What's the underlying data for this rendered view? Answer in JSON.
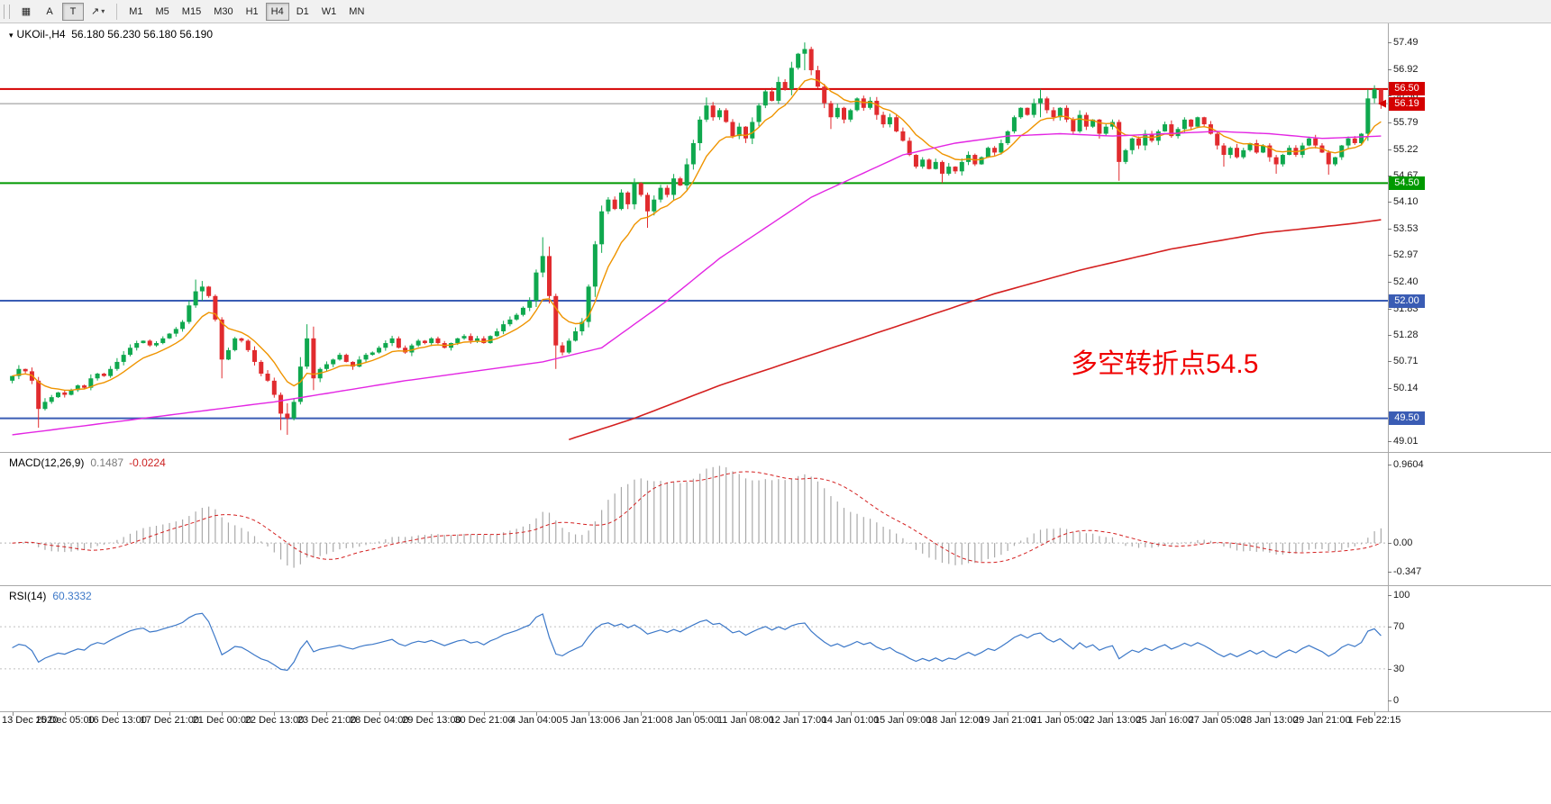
{
  "toolbar": {
    "tools": [
      {
        "id": "chart-grid",
        "glyph": "▦",
        "pressed": false
      },
      {
        "id": "label-a",
        "glyph": "A",
        "pressed": false
      },
      {
        "id": "text-tool",
        "glyph": "T",
        "pressed": true
      },
      {
        "id": "draw-tool",
        "glyph": "↗",
        "pressed": false,
        "caret": "▾"
      }
    ],
    "timeframes": [
      "M1",
      "M5",
      "M15",
      "M30",
      "H1",
      "H4",
      "D1",
      "W1",
      "MN"
    ],
    "active_timeframe": "H4"
  },
  "chart": {
    "header": {
      "menu_glyph": "▾",
      "symbol": "UKOil-,H4",
      "ohlc": "56.180 56.230 56.180 56.190"
    },
    "annotation": {
      "text": "多空转折点54.5",
      "color": "#f00000"
    },
    "current_price": 56.19,
    "scale": {
      "max": 57.78,
      "min": 48.9
    },
    "price_axis": {
      "ticks": [
        57.49,
        56.92,
        56.36,
        55.79,
        55.22,
        54.67,
        54.1,
        53.53,
        52.97,
        52.4,
        51.83,
        51.28,
        50.71,
        50.14,
        49.01
      ],
      "badges": [
        {
          "value": "56.50",
          "color": "#d40000"
        },
        {
          "value": "56.19",
          "color": "#d40000",
          "current": true
        },
        {
          "value": "54.50",
          "color": "#009900"
        },
        {
          "value": "52.00",
          "color": "#3a5cb4"
        },
        {
          "value": "49.50",
          "color": "#3a5cb4"
        }
      ]
    },
    "hlines": [
      {
        "price": 56.5,
        "color": "#d40000",
        "width": 2
      },
      {
        "price": 54.5,
        "color": "#009900",
        "width": 2
      },
      {
        "price": 52.0,
        "color": "#3a5cb4",
        "width": 2
      },
      {
        "price": 49.5,
        "color": "#3a5cb4",
        "width": 2
      }
    ],
    "colors": {
      "up": "#0fa84e",
      "down": "#e12b2e",
      "ma_fast": "#ef9400",
      "ma_mid": "#e326e3",
      "ma_slow": "#d42020"
    }
  },
  "chart_data": {
    "type": "candlestick",
    "symbol": "UKOil-",
    "timeframe": "H4",
    "open_first": 50.3,
    "closes": [
      50.4,
      50.55,
      50.5,
      50.3,
      49.7,
      49.85,
      49.95,
      50.05,
      50.0,
      50.1,
      50.2,
      50.15,
      50.35,
      50.45,
      50.4,
      50.55,
      50.7,
      50.85,
      51.0,
      51.1,
      51.15,
      51.05,
      51.1,
      51.2,
      51.3,
      51.4,
      51.55,
      51.9,
      52.2,
      52.3,
      52.1,
      51.6,
      50.75,
      50.95,
      51.2,
      51.15,
      50.95,
      50.7,
      50.45,
      50.3,
      50.0,
      49.6,
      49.5,
      49.85,
      50.6,
      51.2,
      50.35,
      50.55,
      50.65,
      50.75,
      50.85,
      50.7,
      50.6,
      50.75,
      50.85,
      50.9,
      51.0,
      51.1,
      51.2,
      51.0,
      50.9,
      51.05,
      51.15,
      51.1,
      51.2,
      51.1,
      51.0,
      51.1,
      51.2,
      51.25,
      51.15,
      51.2,
      51.1,
      51.25,
      51.35,
      51.5,
      51.6,
      51.7,
      51.85,
      52.0,
      52.6,
      52.95,
      52.1,
      51.05,
      50.9,
      51.15,
      51.35,
      51.55,
      52.3,
      53.2,
      53.9,
      54.15,
      53.95,
      54.3,
      54.05,
      54.5,
      54.25,
      53.9,
      54.15,
      54.4,
      54.25,
      54.6,
      54.45,
      54.9,
      55.35,
      55.85,
      56.15,
      55.9,
      56.05,
      55.8,
      55.5,
      55.7,
      55.45,
      55.8,
      56.15,
      56.45,
      56.25,
      56.65,
      56.5,
      56.95,
      57.25,
      57.35,
      56.9,
      56.55,
      56.2,
      55.9,
      56.1,
      55.85,
      56.05,
      56.3,
      56.1,
      56.25,
      55.95,
      55.75,
      55.9,
      55.6,
      55.4,
      55.1,
      54.85,
      55.0,
      54.8,
      54.95,
      54.7,
      54.85,
      54.75,
      54.95,
      55.1,
      54.9,
      55.05,
      55.25,
      55.15,
      55.35,
      55.6,
      55.9,
      56.1,
      55.95,
      56.2,
      56.3,
      56.05,
      55.9,
      56.1,
      55.85,
      55.6,
      55.95,
      55.7,
      55.85,
      55.55,
      55.7,
      55.8,
      54.95,
      55.2,
      55.45,
      55.3,
      55.55,
      55.4,
      55.6,
      55.75,
      55.5,
      55.65,
      55.85,
      55.7,
      55.9,
      55.75,
      55.55,
      55.3,
      55.1,
      55.25,
      55.05,
      55.2,
      55.35,
      55.15,
      55.3,
      55.05,
      54.9,
      55.1,
      55.25,
      55.1,
      55.3,
      55.45,
      55.3,
      55.15,
      54.9,
      55.05,
      55.3,
      55.45,
      55.35,
      55.55,
      56.3,
      56.5,
      56.19
    ],
    "wick_overrides": {
      "4": [
        50.38,
        49.3
      ],
      "28": [
        52.45,
        51.85
      ],
      "29": [
        52.42,
        52.0
      ],
      "32": [
        51.65,
        50.35
      ],
      "41": [
        50.05,
        49.25
      ],
      "42": [
        49.82,
        49.15
      ],
      "45": [
        51.5,
        50.55
      ],
      "46": [
        51.45,
        50.1
      ],
      "81": [
        53.35,
        52.5
      ],
      "83": [
        52.15,
        50.55
      ],
      "97": [
        54.3,
        53.55
      ],
      "106": [
        56.32,
        55.8
      ],
      "121": [
        57.49,
        56.9
      ],
      "125": [
        56.25,
        55.65
      ],
      "142": [
        54.98,
        54.5
      ],
      "157": [
        56.5,
        55.9
      ],
      "169": [
        55.85,
        54.55
      ],
      "185": [
        55.35,
        54.85
      ],
      "193": [
        55.1,
        54.7
      ],
      "201": [
        55.2,
        54.68
      ],
      "208": [
        56.58,
        56.2
      ],
      "209": [
        56.32,
        56.08
      ]
    },
    "ma_mid_anchors": [
      [
        0,
        49.15
      ],
      [
        20,
        49.5
      ],
      [
        40,
        49.85
      ],
      [
        60,
        50.3
      ],
      [
        81,
        50.7
      ],
      [
        90,
        51.0
      ],
      [
        100,
        52.0
      ],
      [
        108,
        52.9
      ],
      [
        122,
        54.2
      ],
      [
        136,
        55.1
      ],
      [
        144,
        55.35
      ],
      [
        152,
        55.5
      ],
      [
        160,
        55.55
      ],
      [
        168,
        55.5
      ],
      [
        176,
        55.55
      ],
      [
        184,
        55.6
      ],
      [
        192,
        55.55
      ],
      [
        200,
        55.45
      ],
      [
        209,
        55.5
      ]
    ],
    "ma_slow_anchors": [
      [
        85,
        49.05
      ],
      [
        95,
        49.5
      ],
      [
        108,
        50.2
      ],
      [
        122,
        50.85
      ],
      [
        136,
        51.5
      ],
      [
        150,
        52.15
      ],
      [
        163,
        52.65
      ],
      [
        177,
        53.1
      ],
      [
        191,
        53.44
      ],
      [
        204,
        53.63
      ],
      [
        209,
        53.72
      ]
    ]
  },
  "macd": {
    "label": "MACD(12,26,9)",
    "value_main": "0.1487",
    "value_signal": "-0.0224",
    "axis": [
      "0.9604",
      "0.00",
      "-0.347"
    ],
    "params": {
      "fast": 12,
      "slow": 26,
      "signal": 9
    },
    "colors": {
      "hist": "#a9a9a9",
      "signal": "#d42020"
    }
  },
  "rsi": {
    "label": "RSI(14)",
    "value": "60.3332",
    "period": 14,
    "levels": [
      100,
      70,
      30,
      0
    ],
    "color": "#3c78c8"
  },
  "time_axis": {
    "labels": [
      "13 Dec 2020",
      "15 Dec 05:00",
      "16 Dec 13:00",
      "17 Dec 21:00",
      "21 Dec 00:00",
      "22 Dec 13:00",
      "23 Dec 21:00",
      "28 Dec 04:00",
      "29 Dec 13:00",
      "30 Dec 21:00",
      "4 Jan 04:00",
      "5 Jan 13:00",
      "6 Jan 21:00",
      "8 Jan 05:00",
      "11 Jan 08:00",
      "12 Jan 17:00",
      "14 Jan 01:00",
      "15 Jan 09:00",
      "18 Jan 12:00",
      "19 Jan 21:00",
      "21 Jan 05:00",
      "22 Jan 13:00",
      "25 Jan 16:00",
      "27 Jan 05:00",
      "28 Jan 13:00",
      "29 Jan 21:00",
      "1 Feb 22:15"
    ]
  }
}
